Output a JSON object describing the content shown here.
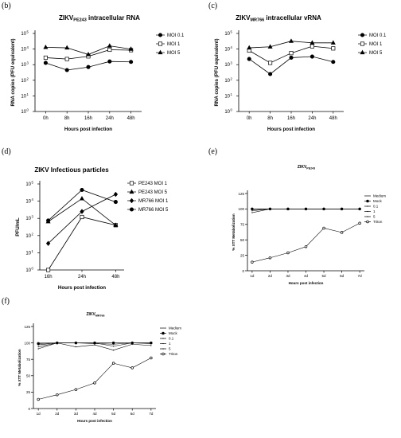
{
  "panels": {
    "b": "(b)",
    "c": "(c)",
    "d": "(d)",
    "e": "(e)",
    "f": "(f)"
  },
  "chart_data": [
    {
      "id": "b",
      "type": "line",
      "title_main": "ZIKV",
      "title_sub": "PE243",
      "title_rest": " intracellular RNA",
      "ylabel": "RNA copies (PFU equivalent)",
      "xlabel": "Hours post infection",
      "yscale": "log",
      "ylim": [
        1,
        100000
      ],
      "yticks": [
        1,
        10,
        100,
        1000,
        10000,
        100000
      ],
      "categories": [
        "0h",
        "8h",
        "16h",
        "24h",
        "48h"
      ],
      "series": [
        {
          "name": "MOI 0.1",
          "marker": "circle",
          "values": [
            1300,
            450,
            700,
            1600,
            1500
          ]
        },
        {
          "name": "MOI 1",
          "marker": "square",
          "values": [
            2800,
            2300,
            3400,
            9000,
            8500
          ]
        },
        {
          "name": "MOI 5",
          "marker": "triangle",
          "values": [
            13000,
            12000,
            4500,
            16000,
            10000
          ]
        }
      ]
    },
    {
      "id": "c",
      "type": "line",
      "title_main": "ZIKV",
      "title_sub": "MR766",
      "title_rest": " intracellular vRNA",
      "ylabel": "RNA copies (PFU equivalent)",
      "xlabel": "Hours post infection",
      "yscale": "log",
      "ylim": [
        1,
        100000
      ],
      "yticks": [
        1,
        10,
        100,
        1000,
        10000,
        100000
      ],
      "categories": [
        "0h",
        "8h",
        "16h",
        "24h",
        "48h"
      ],
      "series": [
        {
          "name": "MOI 0.1",
          "marker": "circle",
          "values": [
            2300,
            250,
            2800,
            3300,
            1500
          ]
        },
        {
          "name": "MOI 1",
          "marker": "square",
          "values": [
            8000,
            1300,
            5500,
            15000,
            11000
          ]
        },
        {
          "name": "MOI 5",
          "marker": "triangle",
          "values": [
            12000,
            14000,
            32000,
            25000,
            25000
          ]
        }
      ]
    },
    {
      "id": "d",
      "type": "line",
      "title_main": "ZIKV Infectious particles",
      "ylabel": "PFU/mL",
      "xlabel": "Hours post infection",
      "yscale": "log",
      "ylim": [
        1,
        100000
      ],
      "yticks": [
        1,
        10,
        100,
        1000,
        10000,
        100000
      ],
      "categories": [
        "16h",
        "24h",
        "48h"
      ],
      "series": [
        {
          "name": "PE243 MOI 1",
          "marker": "square",
          "values": [
            1,
            1200,
            400
          ]
        },
        {
          "name": "PE243 MOI 5",
          "marker": "triangle",
          "values": [
            650,
            14000,
            400
          ]
        },
        {
          "name": "MR766 MOI 1",
          "marker": "diamond",
          "values": [
            35,
            2500,
            25000
          ]
        },
        {
          "name": "MR766 MOI 5",
          "marker": "circle",
          "values": [
            750,
            45000,
            9000
          ]
        }
      ]
    },
    {
      "id": "e",
      "type": "line",
      "title_main": "ZIKV",
      "title_sub": "PE243",
      "ylabel": "% XTT Metabolization",
      "xlabel": "Hours post infection",
      "ylim": [
        0,
        125
      ],
      "yticks": [
        0,
        25,
        50,
        75,
        100,
        125
      ],
      "categories": [
        "1d",
        "2d",
        "3d",
        "4d",
        "5d",
        "6d",
        "7d"
      ],
      "series": [
        {
          "name": "Medium",
          "marker": "none",
          "values": [
            100,
            100,
            100,
            100,
            100,
            100,
            100
          ]
        },
        {
          "name": "Mock",
          "marker": "circle",
          "values": [
            100,
            100,
            100,
            100,
            100,
            100,
            100
          ]
        },
        {
          "name": "0.1",
          "marker": "dot",
          "values": [
            99,
            100,
            100,
            100,
            100,
            100,
            100
          ]
        },
        {
          "name": "1",
          "marker": "dot",
          "values": [
            97,
            100,
            100,
            100,
            100,
            100,
            100
          ]
        },
        {
          "name": "5",
          "marker": "dot",
          "values": [
            94,
            100,
            100,
            100,
            100,
            100,
            100
          ]
        },
        {
          "name": "Triton",
          "marker": "open",
          "values": [
            14,
            21,
            29,
            39,
            69,
            62,
            77
          ]
        }
      ]
    },
    {
      "id": "f",
      "type": "line",
      "title_main": "ZIKV",
      "title_sub": "MR766",
      "ylabel": "% XTT Metabolization",
      "xlabel": "Hours post infection",
      "ylim": [
        0,
        125
      ],
      "yticks": [
        0,
        25,
        50,
        75,
        100,
        125
      ],
      "categories": [
        "1d",
        "2d",
        "3d",
        "4d",
        "5d",
        "6d",
        "7d"
      ],
      "series": [
        {
          "name": "Medium",
          "marker": "none",
          "values": [
            100,
            100,
            100,
            100,
            100,
            100,
            100
          ]
        },
        {
          "name": "Mock",
          "marker": "circle",
          "values": [
            99,
            100,
            100,
            100,
            100,
            100,
            100
          ]
        },
        {
          "name": "0.1",
          "marker": "dot",
          "values": [
            97,
            100,
            100,
            99,
            98,
            100,
            99
          ]
        },
        {
          "name": "1",
          "marker": "dot",
          "values": [
            94,
            100,
            100,
            100,
            95,
            100,
            100
          ]
        },
        {
          "name": "5",
          "marker": "dot",
          "values": [
            91,
            100,
            94,
            97,
            89,
            98,
            96
          ]
        },
        {
          "name": "Triton",
          "marker": "open",
          "values": [
            14,
            21,
            29,
            39,
            69,
            62,
            77
          ]
        }
      ]
    }
  ]
}
